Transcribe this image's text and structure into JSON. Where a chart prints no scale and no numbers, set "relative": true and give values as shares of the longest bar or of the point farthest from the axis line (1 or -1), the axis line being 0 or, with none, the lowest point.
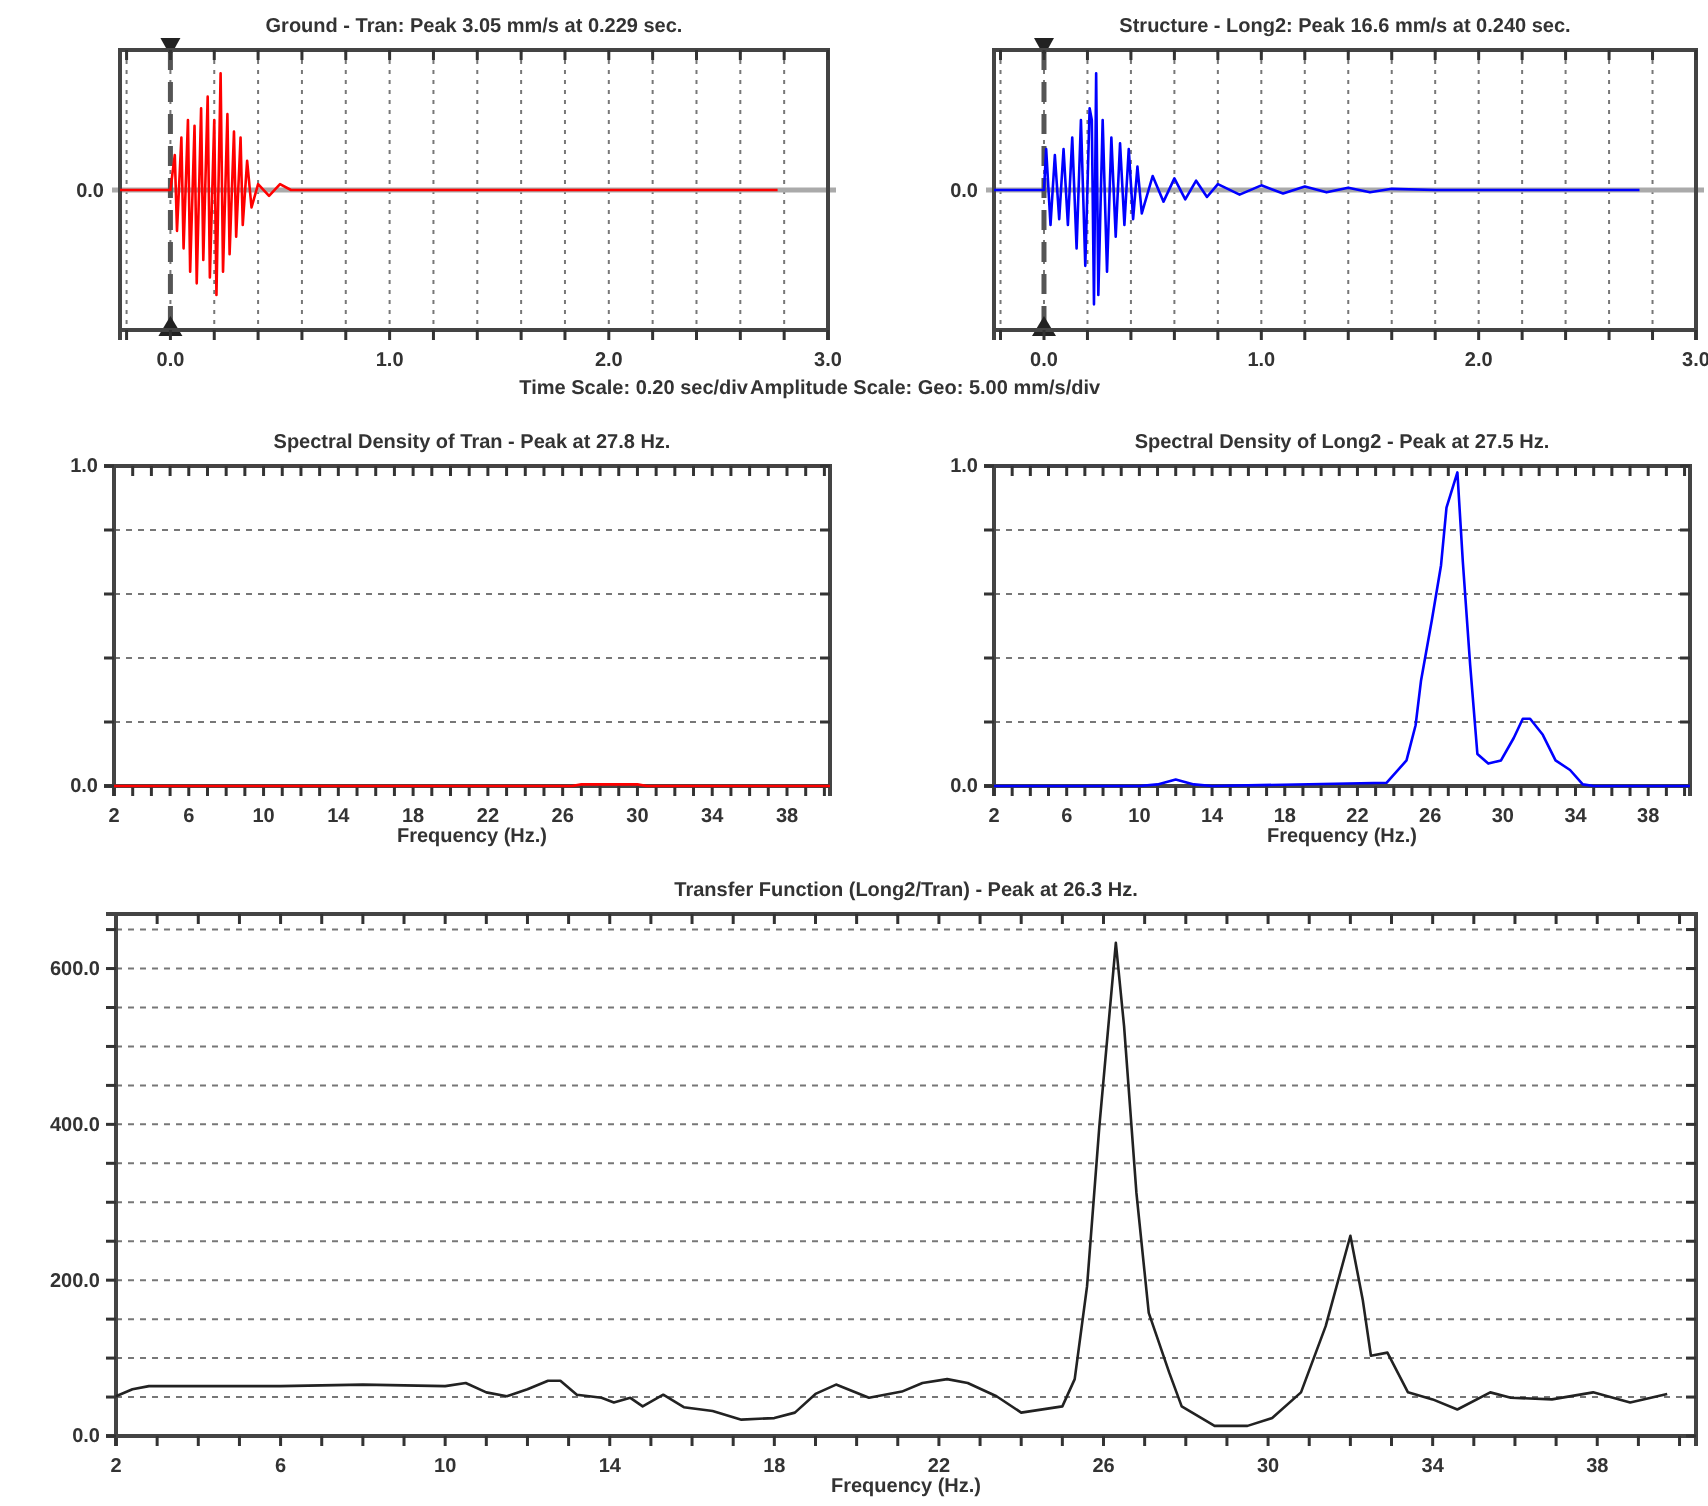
{
  "chart_data": [
    {
      "type": "line",
      "title": "Ground - Tran: Peak 3.05 mm/s at 0.229 sec.",
      "relative": true,
      "xlim": [
        -0.23,
        3.0
      ],
      "xticks": [
        {
          "value": -0.2,
          "label": null
        },
        {
          "value": 0,
          "label": "0.0"
        },
        {
          "value": 0.2,
          "label": null
        },
        {
          "value": 0.4,
          "label": null
        },
        {
          "value": 0.6,
          "label": null
        },
        {
          "value": 0.8,
          "label": null
        },
        {
          "value": 1,
          "label": "1.0"
        },
        {
          "value": 1.2,
          "label": null
        },
        {
          "value": 1.4,
          "label": null
        },
        {
          "value": 1.6,
          "label": null
        },
        {
          "value": 1.8,
          "label": null
        },
        {
          "value": 2,
          "label": "2.0"
        },
        {
          "value": 2.2,
          "label": null
        },
        {
          "value": 2.4,
          "label": null
        },
        {
          "value": 2.6,
          "label": null
        },
        {
          "value": 2.8,
          "label": null
        },
        {
          "value": 3,
          "label": "3.0"
        }
      ],
      "grid": "x",
      "annotations": [
        "Time Scale: 0.20 sec/div"
      ],
      "ref_lines": [
        {
          "axis": "y",
          "value": 0,
          "label": "0.0",
          "color": "#aaaaaa"
        },
        {
          "axis": "x",
          "value": 0,
          "color": "#555555",
          "line_style": "dashed"
        }
      ],
      "series": [
        {
          "color": "#ff0000",
          "x": [
            -0.23,
            0.0,
            0.02,
            0.03,
            0.05,
            0.06,
            0.08,
            0.09,
            0.11,
            0.12,
            0.14,
            0.15,
            0.17,
            0.18,
            0.2,
            0.21,
            0.229,
            0.24,
            0.26,
            0.27,
            0.29,
            0.3,
            0.32,
            0.33,
            0.35,
            0.37,
            0.4,
            0.45,
            0.5,
            0.55,
            0.6,
            2.77
          ],
          "values": [
            0,
            0,
            0.3,
            -0.35,
            0.45,
            -0.5,
            0.6,
            -0.7,
            0.55,
            -0.8,
            0.7,
            -0.6,
            0.8,
            -0.75,
            0.6,
            -0.9,
            1,
            -0.7,
            0.65,
            -0.55,
            0.5,
            -0.4,
            0.45,
            -0.3,
            0.25,
            -0.15,
            0.05,
            -0.05,
            0.05,
            0,
            0,
            0
          ]
        }
      ]
    },
    {
      "type": "line",
      "title": "Structure - Long2: Peak 16.6 mm/s at 0.240 sec.",
      "relative": true,
      "xlim": [
        -0.23,
        3.0
      ],
      "xticks": [
        {
          "value": -0.2,
          "label": null
        },
        {
          "value": 0,
          "label": "0.0"
        },
        {
          "value": 0.2,
          "label": null
        },
        {
          "value": 0.4,
          "label": null
        },
        {
          "value": 0.6,
          "label": null
        },
        {
          "value": 0.8,
          "label": null
        },
        {
          "value": 1,
          "label": "1.0"
        },
        {
          "value": 1.2,
          "label": null
        },
        {
          "value": 1.4,
          "label": null
        },
        {
          "value": 1.6,
          "label": null
        },
        {
          "value": 1.8,
          "label": null
        },
        {
          "value": 2,
          "label": "2.0"
        },
        {
          "value": 2.2,
          "label": null
        },
        {
          "value": 2.4,
          "label": null
        },
        {
          "value": 2.6,
          "label": null
        },
        {
          "value": 2.8,
          "label": null
        },
        {
          "value": 3,
          "label": "3.0"
        }
      ],
      "grid": "x",
      "annotations": [
        "Amplitude Scale: Geo: 5.00 mm/s/div"
      ],
      "ref_lines": [
        {
          "axis": "y",
          "value": 0,
          "label": "0.0",
          "color": "#aaaaaa"
        },
        {
          "axis": "x",
          "value": 0,
          "color": "#555555",
          "line_style": "dashed"
        }
      ],
      "series": [
        {
          "color": "#0000ff",
          "x": [
            -0.23,
            0.0,
            0.01,
            0.03,
            0.05,
            0.07,
            0.09,
            0.11,
            0.13,
            0.15,
            0.17,
            0.19,
            0.21,
            0.22,
            0.23,
            0.24,
            0.25,
            0.27,
            0.29,
            0.31,
            0.33,
            0.35,
            0.37,
            0.39,
            0.41,
            0.43,
            0.45,
            0.5,
            0.55,
            0.6,
            0.65,
            0.7,
            0.75,
            0.8,
            0.9,
            1.0,
            1.1,
            1.2,
            1.3,
            1.4,
            1.5,
            1.6,
            1.8,
            2.74
          ],
          "values": [
            0,
            0,
            0.35,
            -0.3,
            0.3,
            -0.25,
            0.35,
            -0.3,
            0.45,
            -0.5,
            0.6,
            -0.65,
            0.7,
            0.6,
            -0.98,
            1,
            -0.9,
            0.6,
            -0.7,
            0.45,
            -0.4,
            0.4,
            -0.3,
            0.35,
            -0.25,
            0.2,
            -0.2,
            0.12,
            -0.1,
            0.1,
            -0.08,
            0.08,
            -0.06,
            0.05,
            -0.04,
            0.04,
            -0.03,
            0.03,
            -0.02,
            0.02,
            -0.02,
            0.01,
            0,
            0
          ]
        }
      ]
    },
    {
      "type": "line",
      "title": "Spectral Density of Tran - Peak at 27.8 Hz.",
      "xlabel": "Frequency (Hz.)",
      "xlim": [
        2,
        40.3
      ],
      "ylim": [
        0,
        1
      ],
      "xticks": [
        2,
        {
          "value": 3,
          "label": null
        },
        {
          "value": 4,
          "label": null
        },
        {
          "value": 5,
          "label": null
        },
        6,
        {
          "value": 7,
          "label": null
        },
        {
          "value": 8,
          "label": null
        },
        {
          "value": 9,
          "label": null
        },
        10,
        {
          "value": 11,
          "label": null
        },
        {
          "value": 12,
          "label": null
        },
        {
          "value": 13,
          "label": null
        },
        14,
        {
          "value": 15,
          "label": null
        },
        {
          "value": 16,
          "label": null
        },
        {
          "value": 17,
          "label": null
        },
        18,
        {
          "value": 19,
          "label": null
        },
        {
          "value": 20,
          "label": null
        },
        {
          "value": 21,
          "label": null
        },
        22,
        {
          "value": 23,
          "label": null
        },
        {
          "value": 24,
          "label": null
        },
        {
          "value": 25,
          "label": null
        },
        26,
        {
          "value": 27,
          "label": null
        },
        {
          "value": 28,
          "label": null
        },
        {
          "value": 29,
          "label": null
        },
        30,
        {
          "value": 31,
          "label": null
        },
        {
          "value": 32,
          "label": null
        },
        {
          "value": 33,
          "label": null
        },
        34,
        {
          "value": 35,
          "label": null
        },
        {
          "value": 36,
          "label": null
        },
        {
          "value": 37,
          "label": null
        },
        38,
        {
          "value": 39,
          "label": null
        },
        {
          "value": 40,
          "label": null
        }
      ],
      "yticks": [
        {
          "value": 0,
          "label": "0.0"
        },
        {
          "value": 0.2,
          "label": null
        },
        {
          "value": 0.4,
          "label": null
        },
        {
          "value": 0.6,
          "label": null
        },
        {
          "value": 0.8,
          "label": null
        },
        {
          "value": 1,
          "label": "1.0"
        }
      ],
      "grid": "y",
      "series": [
        {
          "color": "#ff0000",
          "x": [
            2,
            26.5,
            27,
            28,
            29,
            30,
            30.5,
            40.3
          ],
          "values": [
            0,
            0,
            0.005,
            0.005,
            0.005,
            0.005,
            0,
            0
          ]
        }
      ]
    },
    {
      "type": "line",
      "title": "Spectral Density of Long2 - Peak at 27.5 Hz.",
      "xlabel": "Frequency (Hz.)",
      "xlim": [
        2,
        40.3
      ],
      "ylim": [
        0,
        1
      ],
      "xticks": [
        2,
        {
          "value": 3,
          "label": null
        },
        {
          "value": 4,
          "label": null
        },
        {
          "value": 5,
          "label": null
        },
        6,
        {
          "value": 7,
          "label": null
        },
        {
          "value": 8,
          "label": null
        },
        {
          "value": 9,
          "label": null
        },
        10,
        {
          "value": 11,
          "label": null
        },
        {
          "value": 12,
          "label": null
        },
        {
          "value": 13,
          "label": null
        },
        14,
        {
          "value": 15,
          "label": null
        },
        {
          "value": 16,
          "label": null
        },
        {
          "value": 17,
          "label": null
        },
        18,
        {
          "value": 19,
          "label": null
        },
        {
          "value": 20,
          "label": null
        },
        {
          "value": 21,
          "label": null
        },
        22,
        {
          "value": 23,
          "label": null
        },
        {
          "value": 24,
          "label": null
        },
        {
          "value": 25,
          "label": null
        },
        26,
        {
          "value": 27,
          "label": null
        },
        {
          "value": 28,
          "label": null
        },
        {
          "value": 29,
          "label": null
        },
        30,
        {
          "value": 31,
          "label": null
        },
        {
          "value": 32,
          "label": null
        },
        {
          "value": 33,
          "label": null
        },
        34,
        {
          "value": 35,
          "label": null
        },
        {
          "value": 36,
          "label": null
        },
        {
          "value": 37,
          "label": null
        },
        38,
        {
          "value": 39,
          "label": null
        },
        {
          "value": 40,
          "label": null
        }
      ],
      "yticks": [
        {
          "value": 0,
          "label": "0.0"
        },
        {
          "value": 0.2,
          "label": null
        },
        {
          "value": 0.4,
          "label": null
        },
        {
          "value": 0.6,
          "label": null
        },
        {
          "value": 0.8,
          "label": null
        },
        {
          "value": 1,
          "label": "1.0"
        }
      ],
      "grid": "y",
      "series": [
        {
          "color": "#0000ff",
          "x": [
            2,
            10,
            11,
            12,
            13,
            14,
            23.6,
            24.7,
            25.2,
            25.5,
            26.1,
            26.6,
            26.9,
            27.5,
            27.8,
            28.2,
            28.6,
            29.2,
            29.9,
            30.6,
            31.1,
            31.5,
            32.2,
            32.9,
            33.7,
            34.4,
            35,
            40.3
          ],
          "values": [
            0,
            0,
            0.005,
            0.02,
            0.005,
            0,
            0.01,
            0.08,
            0.19,
            0.33,
            0.52,
            0.69,
            0.87,
            0.98,
            0.7,
            0.38,
            0.1,
            0.07,
            0.08,
            0.15,
            0.21,
            0.21,
            0.16,
            0.08,
            0.05,
            0.005,
            0,
            0
          ]
        }
      ]
    },
    {
      "type": "line",
      "title": "Transfer Function (Long2/Tran) - Peak at 26.3 Hz.",
      "xlabel": "Frequency (Hz.)",
      "xlim": [
        2,
        40.4
      ],
      "ylim": [
        0,
        670
      ],
      "xticks": [
        2,
        {
          "value": 3,
          "label": null
        },
        {
          "value": 4,
          "label": null
        },
        {
          "value": 5,
          "label": null
        },
        6,
        {
          "value": 7,
          "label": null
        },
        {
          "value": 8,
          "label": null
        },
        {
          "value": 9,
          "label": null
        },
        10,
        {
          "value": 11,
          "label": null
        },
        {
          "value": 12,
          "label": null
        },
        {
          "value": 13,
          "label": null
        },
        14,
        {
          "value": 15,
          "label": null
        },
        {
          "value": 16,
          "label": null
        },
        {
          "value": 17,
          "label": null
        },
        18,
        {
          "value": 19,
          "label": null
        },
        {
          "value": 20,
          "label": null
        },
        {
          "value": 21,
          "label": null
        },
        22,
        {
          "value": 23,
          "label": null
        },
        {
          "value": 24,
          "label": null
        },
        {
          "value": 25,
          "label": null
        },
        26,
        {
          "value": 27,
          "label": null
        },
        {
          "value": 28,
          "label": null
        },
        {
          "value": 29,
          "label": null
        },
        30,
        {
          "value": 31,
          "label": null
        },
        {
          "value": 32,
          "label": null
        },
        {
          "value": 33,
          "label": null
        },
        34,
        {
          "value": 35,
          "label": null
        },
        {
          "value": 36,
          "label": null
        },
        {
          "value": 37,
          "label": null
        },
        38,
        {
          "value": 39,
          "label": null
        },
        {
          "value": 40,
          "label": null
        }
      ],
      "yticks": [
        {
          "value": 0,
          "label": "0.0"
        },
        {
          "value": 50,
          "label": null
        },
        {
          "value": 100,
          "label": null
        },
        {
          "value": 150,
          "label": null
        },
        {
          "value": 200,
          "label": "200.0"
        },
        {
          "value": 250,
          "label": null
        },
        {
          "value": 300,
          "label": null
        },
        {
          "value": 350,
          "label": null
        },
        {
          "value": 400,
          "label": "400.0"
        },
        {
          "value": 450,
          "label": null
        },
        {
          "value": 500,
          "label": null
        },
        {
          "value": 550,
          "label": null
        },
        {
          "value": 600,
          "label": "600.0"
        },
        {
          "value": 650,
          "label": null
        }
      ],
      "grid": "y",
      "series": [
        {
          "color": "#222222",
          "x": [
            2,
            2.4,
            2.8,
            6,
            8,
            10,
            10.5,
            11,
            11.5,
            12,
            12.5,
            12.8,
            13.2,
            13.8,
            14.1,
            14.5,
            14.8,
            15.3,
            15.8,
            16.5,
            17.2,
            18,
            18.5,
            19,
            19.5,
            20.3,
            21.1,
            21.6,
            22.2,
            22.7,
            23.4,
            24,
            25,
            25.3,
            25.6,
            25.9,
            26.3,
            26.5,
            26.8,
            27.1,
            27.6,
            27.9,
            28.7,
            29.5,
            30.1,
            30.8,
            31.4,
            32,
            32.3,
            32.5,
            32.9,
            33.4,
            34,
            34.6,
            35.4,
            35.9,
            36.9,
            37.9,
            38.8,
            39.7
          ],
          "values": [
            51,
            60,
            64,
            64,
            66,
            64,
            68,
            56,
            51,
            60,
            71,
            71,
            53,
            49,
            43,
            49,
            38,
            53,
            37,
            32,
            21,
            23,
            30,
            54,
            66,
            49,
            57,
            68,
            73,
            68,
            51,
            30,
            38,
            73,
            192,
            398,
            633,
            526,
            312,
            158,
            81,
            38,
            13,
            13,
            23,
            56,
            141,
            257,
            175,
            103,
            107,
            56,
            47,
            34,
            56,
            49,
            47,
            56,
            43,
            54
          ]
        }
      ]
    }
  ]
}
